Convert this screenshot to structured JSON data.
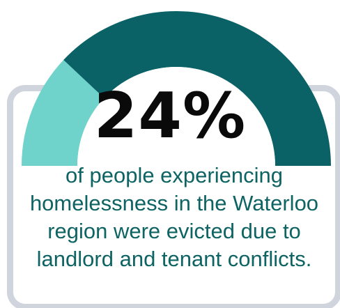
{
  "chart_data": {
    "type": "pie",
    "style": "half-donut gauge",
    "value_label": "24%",
    "values": [
      24,
      76
    ],
    "colors": [
      "#6fd3cc",
      "#0b6266"
    ]
  },
  "caption": "of people experiencing homelessness in the Waterloo region were evicted due to landlord and tenant conflicts."
}
